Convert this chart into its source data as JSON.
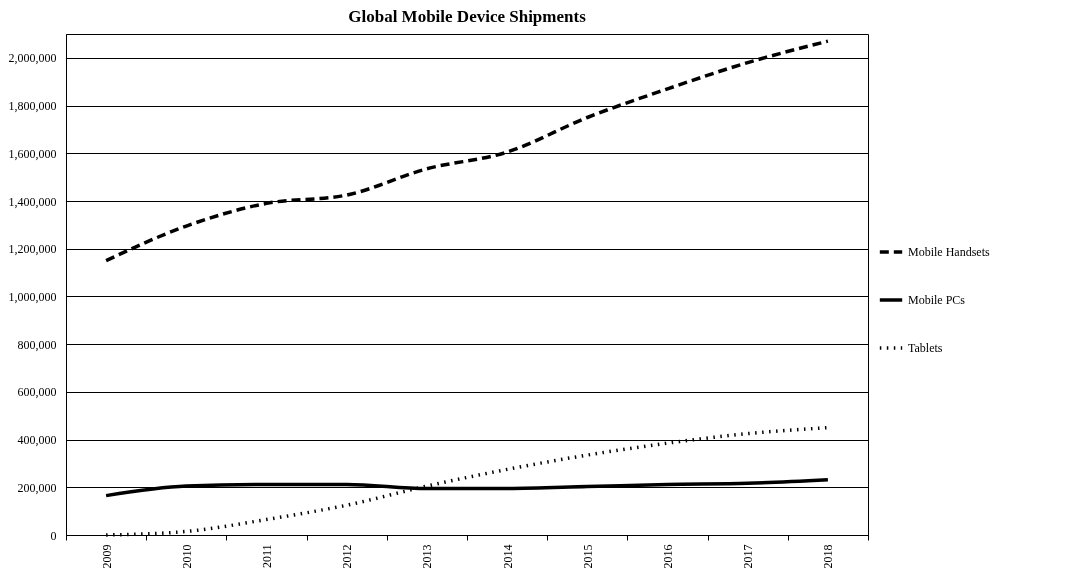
{
  "chart_data": {
    "type": "line",
    "title": "Global Mobile Device Shipments",
    "categories": [
      "2009",
      "2010",
      "2011",
      "2012",
      "2013",
      "2014",
      "2015",
      "2016",
      "2017",
      "2018"
    ],
    "series": [
      {
        "name": "Mobile Handsets",
        "color": "#000000",
        "line_style": "dashed",
        "values": [
          1150000,
          1295000,
          1390000,
          1425000,
          1535000,
          1605000,
          1750000,
          1870000,
          1980000,
          2070000
        ]
      },
      {
        "name": "Mobile PCs",
        "color": "#000000",
        "line_style": "solid",
        "values": [
          165000,
          205000,
          212000,
          212000,
          195000,
          195000,
          203000,
          212000,
          217000,
          232000
        ]
      },
      {
        "name": "Tablets",
        "color": "#000000",
        "line_style": "dotted",
        "values": [
          0,
          15000,
          65000,
          125000,
          205000,
          275000,
          335000,
          385000,
          425000,
          450000
        ]
      }
    ],
    "ylim": [
      0,
      2100000
    ],
    "yticks": [
      0,
      {
        "value": 200000,
        "label": "200,000"
      },
      {
        "value": 400000,
        "label": "400,000"
      },
      {
        "value": 600000,
        "label": "600,000"
      },
      {
        "value": 800000,
        "label": "800,000"
      },
      {
        "value": 1000000,
        "label": "1,000,000"
      },
      {
        "value": 1200000,
        "label": "1,200,000"
      },
      {
        "value": 1400000,
        "label": "1,400,000"
      },
      {
        "value": 1600000,
        "label": "1,600,000"
      },
      {
        "value": 1800000,
        "label": "1,800,000"
      },
      {
        "value": 2000000,
        "label": "2,000,000"
      }
    ],
    "grid": "y",
    "legend": "right",
    "marker": "none"
  }
}
